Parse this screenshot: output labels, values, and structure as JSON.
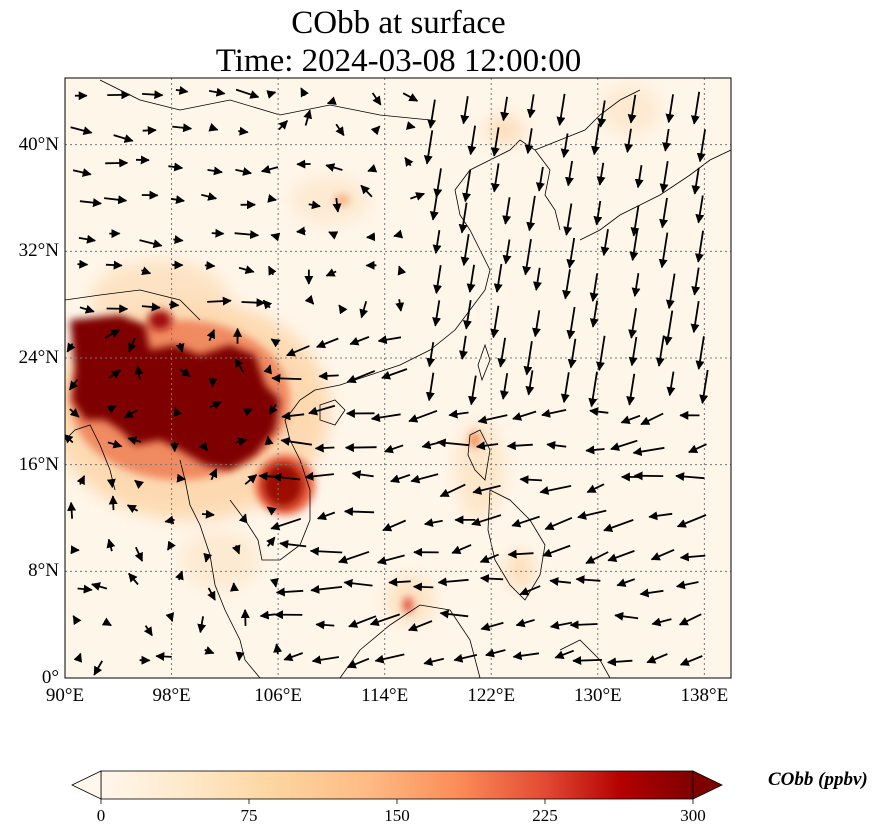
{
  "title": {
    "line1": "CObb at surface",
    "line2": "Time: 2024-03-08 12:00:00"
  },
  "map": {
    "lon_range": [
      90,
      140
    ],
    "lat_range": [
      0,
      45
    ],
    "lat_ticks": [
      {
        "value": 40,
        "label": "40°N"
      },
      {
        "value": 32,
        "label": "32°N"
      },
      {
        "value": 24,
        "label": "24°N"
      },
      {
        "value": 16,
        "label": "16°N"
      },
      {
        "value": 8,
        "label": "8°N"
      },
      {
        "value": 0,
        "label": "0°"
      }
    ],
    "lon_ticks": [
      {
        "value": 90,
        "label": "90°E"
      },
      {
        "value": 98,
        "label": "98°E"
      },
      {
        "value": 106,
        "label": "106°E"
      },
      {
        "value": 114,
        "label": "114°E"
      },
      {
        "value": 122,
        "label": "122°E"
      },
      {
        "value": 130,
        "label": "130°E"
      },
      {
        "value": 138,
        "label": "138°E"
      }
    ],
    "gridlines": true,
    "colormap": "OrRd",
    "colors": {
      "low": "#fff7ec",
      "mid": "#fdbb84",
      "high": "#7f0000"
    }
  },
  "colorbar": {
    "label": "CObb (ppbv)",
    "ticks": [
      "0",
      "75",
      "150",
      "225",
      "300"
    ],
    "range": [
      0,
      300
    ],
    "extend": "both"
  }
}
